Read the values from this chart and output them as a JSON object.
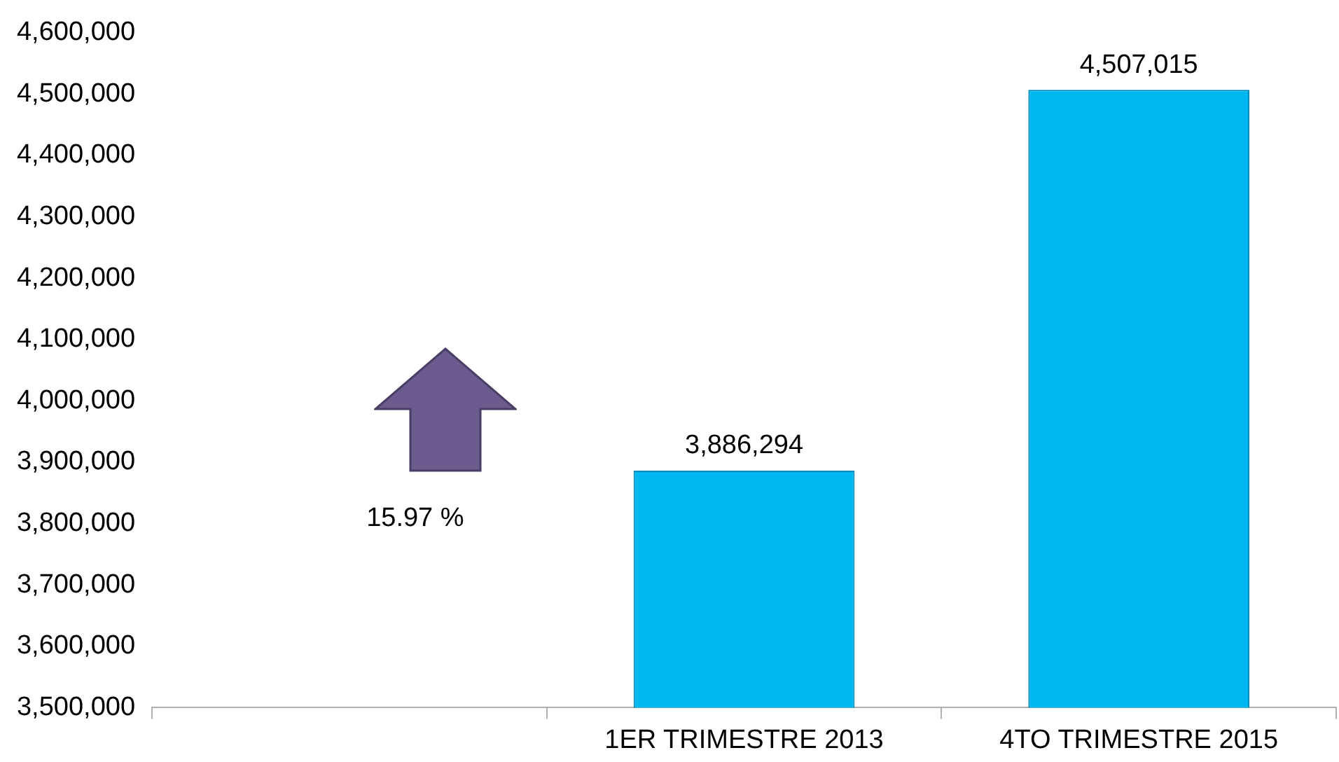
{
  "chart_data": {
    "type": "bar",
    "categories": [
      null,
      "1ER TRIMESTRE 2013",
      "4TO TRIMESTRE 2015"
    ],
    "values": [
      null,
      3886294,
      4507015
    ],
    "value_labels": [
      null,
      "3,886,294",
      "4,507,015"
    ],
    "color": "#00b8f0",
    "ylim": [
      3500000,
      4600000
    ],
    "yticks": [
      {
        "value": 3500000,
        "label": "3,500,000"
      },
      {
        "value": 3600000,
        "label": "3,600,000"
      },
      {
        "value": 3700000,
        "label": "3,700,000"
      },
      {
        "value": 3800000,
        "label": "3,800,000"
      },
      {
        "value": 3900000,
        "label": "3,900,000"
      },
      {
        "value": 4000000,
        "label": "4,000,000"
      },
      {
        "value": 4100000,
        "label": "4,100,000"
      },
      {
        "value": 4200000,
        "label": "4,200,000"
      },
      {
        "value": 4300000,
        "label": "4,300,000"
      },
      {
        "value": 4400000,
        "label": "4,400,000"
      },
      {
        "value": 4500000,
        "label": "4,500,000"
      },
      {
        "value": 4600000,
        "label": "4,600,000"
      }
    ],
    "annotations": [
      "15.97 %"
    ],
    "grid": false,
    "legend": false
  }
}
